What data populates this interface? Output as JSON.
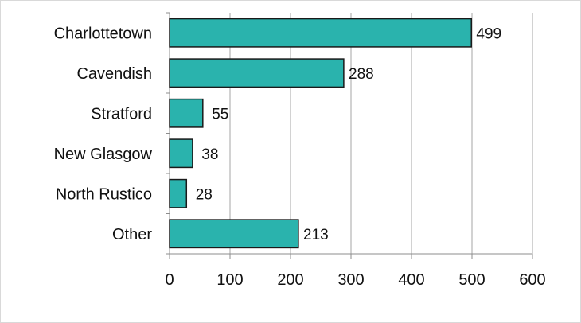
{
  "chart_data": {
    "type": "bar",
    "orientation": "horizontal",
    "categories": [
      "Charlottetown",
      "Cavendish",
      "Stratford",
      "New Glasgow",
      "North Rustico",
      "Other"
    ],
    "values": [
      499,
      288,
      55,
      38,
      28,
      213
    ],
    "data_labels": [
      "499",
      "288",
      "55",
      "38",
      "28",
      "213"
    ],
    "xlim": [
      0,
      600
    ],
    "x_ticks": [
      0,
      100,
      200,
      300,
      400,
      500,
      600
    ],
    "x_tick_labels": [
      "0",
      "100",
      "200",
      "300",
      "400",
      "500",
      "600"
    ],
    "grid": "vertical",
    "legend": "none",
    "colors": {
      "bar_fill": "#2ab3ad",
      "bar_stroke": "#1a1a1a",
      "grid": "#a6a6a6",
      "axis": "#8c8c8c",
      "border": "#d9d9d9"
    }
  }
}
